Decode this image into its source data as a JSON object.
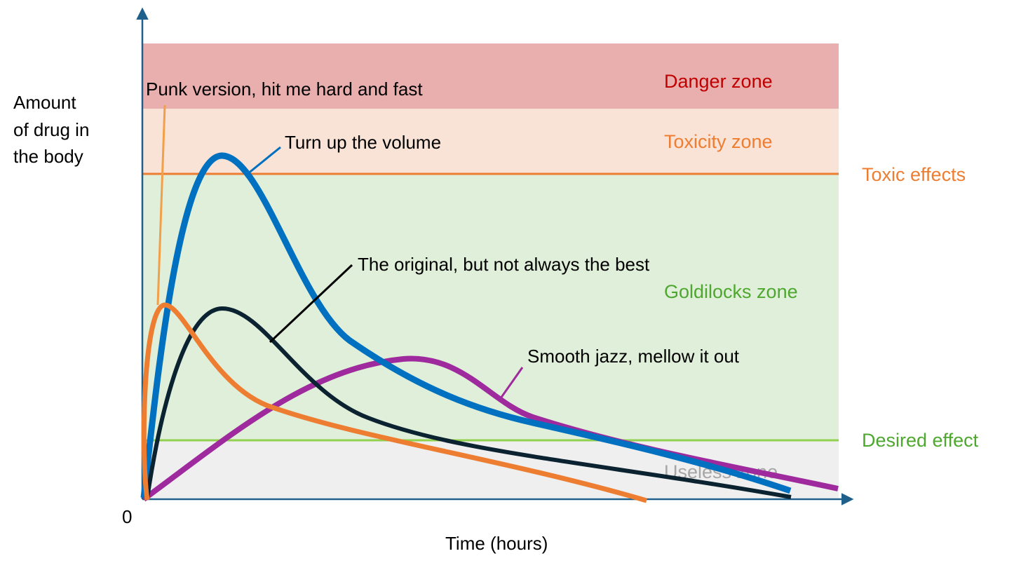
{
  "y_axis_label": [
    "Amount",
    "of drug in",
    "the body"
  ],
  "x_axis_label": "Time (hours)",
  "origin_label": "0",
  "zones": [
    {
      "name": "Danger zone",
      "color": "#e9aeae",
      "text_color": "#c00000"
    },
    {
      "name": "Toxicity zone",
      "color": "#f9e2d6",
      "text_color": "#ed7d31"
    },
    {
      "name": "Goldilocks zone",
      "color": "#e0efd9",
      "text_color": "#4ea72e"
    },
    {
      "name": "Useless zone",
      "color": "#efefef",
      "text_color": "#a6a6a6"
    }
  ],
  "thresholds": [
    {
      "name": "Toxic effects",
      "color": "#ed7d31"
    },
    {
      "name": "Desired effect",
      "color": "#4ea72e",
      "line_color": "#92d050"
    }
  ],
  "curves": [
    {
      "label": "Turn up the volume",
      "color": "#0070c0"
    },
    {
      "label": "The original, but not always the best",
      "color": "#0b2230"
    },
    {
      "label": "Punk version, hit me hard and fast",
      "color": "#ed7d31",
      "pointer_color": "#f29f4a"
    },
    {
      "label": "Smooth jazz, mellow it out",
      "color": "#9e2a9e"
    }
  ],
  "axis_color": "#1f5f8b"
}
